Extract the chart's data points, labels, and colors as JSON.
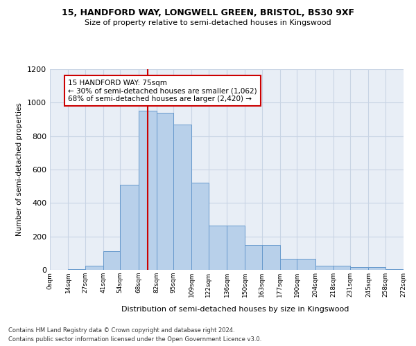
{
  "title": "15, HANDFORD WAY, LONGWELL GREEN, BRISTOL, BS30 9XF",
  "subtitle": "Size of property relative to semi-detached houses in Kingswood",
  "xlabel": "Distribution of semi-detached houses by size in Kingswood",
  "ylabel": "Number of semi-detached properties",
  "footnote1": "Contains HM Land Registry data © Crown copyright and database right 2024.",
  "footnote2": "Contains public sector information licensed under the Open Government Licence v3.0.",
  "bin_edges": [
    0,
    14,
    27,
    41,
    54,
    68,
    82,
    95,
    109,
    122,
    136,
    150,
    163,
    177,
    190,
    204,
    218,
    231,
    245,
    258,
    272
  ],
  "bar_heights": [
    2,
    5,
    25,
    110,
    510,
    950,
    940,
    870,
    520,
    265,
    265,
    150,
    150,
    65,
    65,
    25,
    25,
    15,
    15,
    5
  ],
  "bar_color": "#b8d0ea",
  "bar_edge_color": "#6699cc",
  "grid_color": "#c8d4e4",
  "background_color": "#e8eef6",
  "property_size": 75,
  "vline_color": "#cc0000",
  "annotation_text": "15 HANDFORD WAY: 75sqm\n← 30% of semi-detached houses are smaller (1,062)\n68% of semi-detached houses are larger (2,420) →",
  "annotation_box_color": "#ffffff",
  "annotation_box_edge": "#cc0000",
  "ylim": [
    0,
    1200
  ],
  "tick_labels": [
    "0sqm",
    "14sqm",
    "27sqm",
    "41sqm",
    "54sqm",
    "68sqm",
    "82sqm",
    "95sqm",
    "109sqm",
    "122sqm",
    "136sqm",
    "150sqm",
    "163sqm",
    "177sqm",
    "190sqm",
    "204sqm",
    "218sqm",
    "231sqm",
    "245sqm",
    "258sqm",
    "272sqm"
  ]
}
